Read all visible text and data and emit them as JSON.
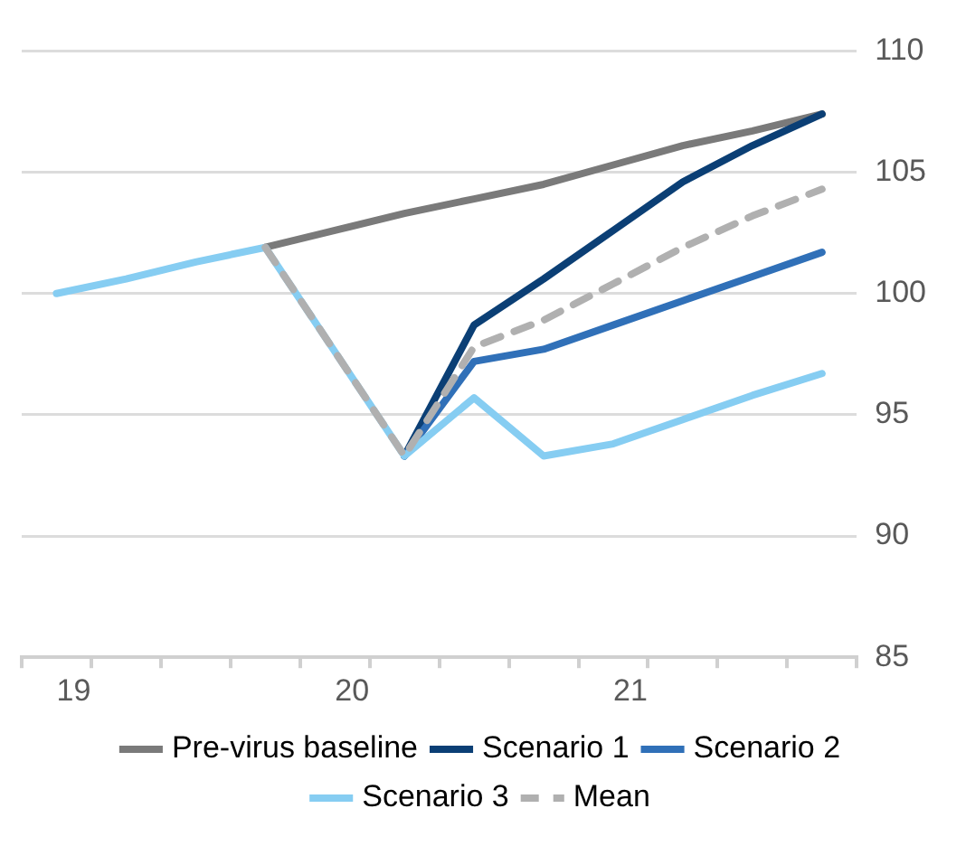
{
  "chart_data": {
    "type": "line",
    "categories": [
      "19",
      null,
      null,
      null,
      "20",
      null,
      null,
      null,
      "21",
      null,
      null,
      null
    ],
    "series": [
      {
        "name": "Pre-virus baseline",
        "color": "#7a7a7a",
        "values": [
          null,
          null,
          null,
          101.9,
          102.6,
          103.3,
          103.9,
          104.5,
          105.3,
          106.1,
          106.7,
          107.4
        ]
      },
      {
        "name": "Scenario 1",
        "color": "#0b3f75",
        "values": [
          null,
          null,
          null,
          null,
          null,
          93.3,
          98.7,
          100.6,
          102.6,
          104.6,
          106.1,
          107.4
        ]
      },
      {
        "name": "Scenario 2",
        "color": "#3070b8",
        "values": [
          null,
          null,
          null,
          null,
          null,
          93.3,
          97.2,
          97.7,
          98.7,
          99.7,
          100.7,
          101.7
        ]
      },
      {
        "name": "Scenario 3",
        "color": "#86cdf2",
        "values": [
          100,
          100.6,
          101.3,
          101.9,
          97.6,
          93.3,
          95.7,
          93.3,
          93.8,
          94.8,
          95.8,
          96.7
        ]
      },
      {
        "name": "Mean",
        "color": "#b0b0b0",
        "line_style": "dashed",
        "values": [
          null,
          null,
          null,
          101.9,
          97.6,
          93.3,
          97.8,
          98.9,
          100.4,
          101.9,
          103.2,
          104.3
        ]
      }
    ],
    "ylim": [
      85,
      110
    ],
    "yticks": [
      85,
      90,
      95,
      100,
      105,
      110
    ],
    "grid": "y",
    "legend": "bottom",
    "marker": "none"
  }
}
